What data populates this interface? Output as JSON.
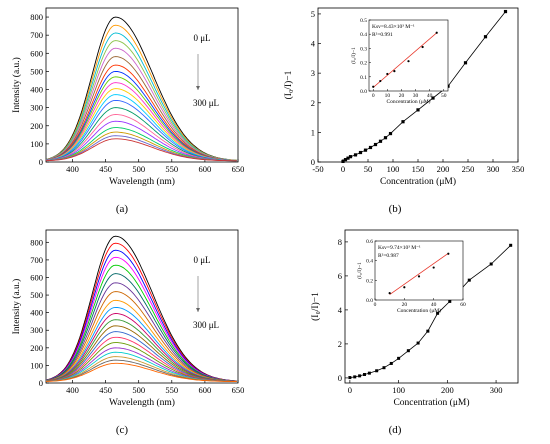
{
  "captions": [
    "(a)",
    "(b)",
    "(c)",
    "(d)"
  ],
  "chart_data": [
    {
      "id": "a",
      "type": "line",
      "xlabel": "Wavelength (nm)",
      "ylabel": "Intensity (a.u.)",
      "xlim": [
        360,
        650
      ],
      "ylim": [
        0,
        850
      ],
      "xticks": [
        400,
        450,
        500,
        550,
        600,
        650
      ],
      "yticks": [
        0,
        100,
        200,
        300,
        400,
        500,
        600,
        700,
        800
      ],
      "annotation_top": "0 μL",
      "annotation_bottom": "300 μL",
      "peak_wavelength": 465,
      "baseline": 6,
      "peak_intensities": [
        800,
        755,
        712,
        670,
        628,
        582,
        535,
        500,
        470,
        438,
        405,
        372,
        340,
        300,
        262,
        225,
        190,
        165,
        145,
        128
      ],
      "colors": [
        "#000000",
        "#ff9900",
        "#00bcd4",
        "#8bc34a",
        "#cc66cc",
        "#996633",
        "#ff3300",
        "#0033ff",
        "#66cc00",
        "#ff33cc",
        "#ffcc00",
        "#00ccff",
        "#3366ff",
        "#009966",
        "#ff6699",
        "#9933ff",
        "#00cc66",
        "#cc9900",
        "#6666cc",
        "#cc3333"
      ]
    },
    {
      "id": "b",
      "type": "line",
      "xlabel": "Concentration (μM)",
      "ylabel": "(I₀/I)−1",
      "xlim": [
        -50,
        350
      ],
      "ylim": [
        0,
        5.2
      ],
      "xticks": [
        -50,
        0,
        50,
        100,
        150,
        200,
        250,
        300,
        350
      ],
      "yticks": [
        0,
        1,
        2,
        3,
        4,
        5
      ],
      "x": [
        0,
        5,
        10,
        15,
        25,
        35,
        45,
        55,
        65,
        75,
        85,
        95,
        120,
        150,
        180,
        210,
        245,
        285,
        325
      ],
      "y": [
        0.02,
        0.08,
        0.13,
        0.18,
        0.24,
        0.32,
        0.4,
        0.49,
        0.59,
        0.7,
        0.82,
        0.96,
        1.36,
        1.76,
        2.16,
        2.56,
        3.35,
        4.23,
        5.08
      ],
      "inset": {
        "xlabel": "Concentration (μM)",
        "ylabel": "(I₀/I)−1",
        "xlim": [
          -3,
          53
        ],
        "ylim": [
          0,
          0.5
        ],
        "xticks": [
          0,
          10,
          20,
          30,
          40,
          50
        ],
        "yticks": [
          0.0,
          0.1,
          0.2,
          0.3,
          0.4,
          0.5
        ],
        "note1": "Ksv=8.43×10³ M⁻¹",
        "note2": "R²=0.991",
        "x": [
          0,
          5,
          10,
          15,
          25,
          35,
          45
        ],
        "y": [
          0.03,
          0.07,
          0.12,
          0.14,
          0.21,
          0.31,
          0.41
        ],
        "fit": [
          [
            0,
            0.025
          ],
          [
            45,
            0.41
          ]
        ]
      }
    },
    {
      "id": "c",
      "type": "line",
      "xlabel": "Wavelength (nm)",
      "ylabel": "Intensity (a.u.)",
      "xlim": [
        360,
        650
      ],
      "ylim": [
        0,
        870
      ],
      "xticks": [
        400,
        450,
        500,
        550,
        600,
        650
      ],
      "yticks": [
        0,
        100,
        200,
        300,
        400,
        500,
        600,
        700,
        800
      ],
      "annotation_top": "0 μL",
      "annotation_bottom": "300 μL",
      "peak_wavelength": 465,
      "baseline": 8,
      "peak_intensities": [
        835,
        795,
        755,
        715,
        670,
        622,
        570,
        520,
        470,
        430,
        395,
        360,
        325,
        292,
        260,
        230,
        200,
        175,
        150,
        130,
        112
      ],
      "colors": [
        "#000000",
        "#ff0000",
        "#0000ff",
        "#ff00ff",
        "#00cc00",
        "#006666",
        "#663399",
        "#cc6600",
        "#ff9900",
        "#0099ff",
        "#cc0066",
        "#339933",
        "#996600",
        "#3366cc",
        "#ff3366",
        "#669900",
        "#9933cc",
        "#00cccc",
        "#cc9933",
        "#666666",
        "#ff6600"
      ]
    },
    {
      "id": "d",
      "type": "line",
      "xlabel": "Concentration (μM)",
      "ylabel": "(I₀/I)−1",
      "xlim": [
        -10,
        345
      ],
      "ylim": [
        -0.3,
        8.7
      ],
      "xticks": [
        0,
        100,
        200,
        300
      ],
      "yticks": [
        0,
        2,
        4,
        6,
        8
      ],
      "x": [
        0,
        10,
        20,
        30,
        40,
        55,
        70,
        85,
        100,
        120,
        140,
        160,
        180,
        205,
        245,
        290,
        330
      ],
      "y": [
        0.02,
        0.06,
        0.12,
        0.2,
        0.28,
        0.42,
        0.6,
        0.85,
        1.15,
        1.6,
        2.05,
        2.75,
        3.8,
        4.5,
        5.75,
        6.7,
        7.8
      ],
      "inset": {
        "xlabel": "Concentration (μM)",
        "ylabel": "(I₀/I)−1",
        "xlim": [
          0,
          60
        ],
        "ylim": [
          0,
          0.6
        ],
        "xticks": [
          0,
          20,
          40,
          60
        ],
        "yticks": [
          0.0,
          0.2,
          0.4,
          0.6
        ],
        "note1": "Ksv=9.74×10³ M⁻¹",
        "note2": "R²=0.987",
        "x": [
          10,
          20,
          30,
          40,
          50
        ],
        "y": [
          0.07,
          0.13,
          0.24,
          0.33,
          0.47
        ],
        "fit": [
          [
            10,
            0.055
          ],
          [
            50,
            0.475
          ]
        ]
      }
    }
  ]
}
